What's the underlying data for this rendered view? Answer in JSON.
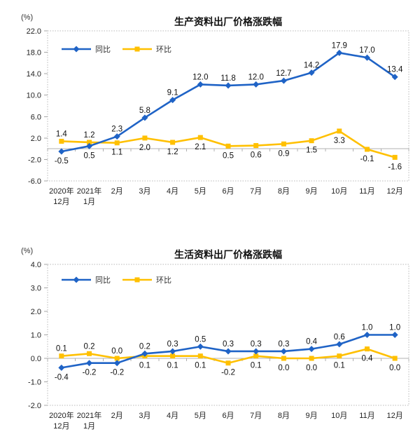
{
  "figure": {
    "background": "#ffffff"
  },
  "palette": {
    "yoy_blue": "#1F63C6",
    "mom_gold": "#FFC000",
    "grid_border": "#b8b8b8",
    "zero_line": "#b0b0b0",
    "tick": "#a6a6a6",
    "axis_text": "#222222",
    "label_text": "#111111"
  },
  "chart_data": [
    {
      "type": "line",
      "title": "生产资料出厂价格涨跌幅",
      "unit_label": "(%)",
      "categories": [
        "2020年|12月",
        "2021年|1月",
        "2月",
        "3月",
        "4月",
        "5月",
        "6月",
        "7月",
        "8月",
        "9月",
        "10月",
        "11月",
        "12月"
      ],
      "series": [
        {
          "key": "yoy",
          "name": "同比",
          "color": "#1F63C6",
          "marker": "diamond",
          "values": [
            -0.5,
            0.5,
            2.3,
            5.8,
            9.1,
            12.0,
            11.8,
            12.0,
            12.7,
            14.2,
            17.9,
            17.0,
            13.4
          ]
        },
        {
          "key": "mom",
          "name": "环比",
          "color": "#FFC000",
          "marker": "square",
          "values": [
            1.4,
            1.2,
            1.1,
            2.0,
            1.2,
            2.1,
            0.5,
            0.6,
            0.9,
            1.5,
            3.3,
            -0.1,
            -1.6
          ]
        }
      ],
      "ylim": [
        -6.0,
        22.0
      ],
      "ytick_step": 4.0,
      "yticks": [
        "22.0",
        "18.0",
        "14.0",
        "10.0",
        "6.0",
        "2.0",
        "-2.0",
        "-6.0"
      ],
      "legend_position": "top-left-inside",
      "grid": false,
      "data_labels": true
    },
    {
      "type": "line",
      "title": "生活资料出厂价格涨跌幅",
      "unit_label": "(%)",
      "categories": [
        "2020年|12月",
        "2021年|1月",
        "2月",
        "3月",
        "4月",
        "5月",
        "6月",
        "7月",
        "8月",
        "9月",
        "10月",
        "11月",
        "12月"
      ],
      "series": [
        {
          "key": "yoy",
          "name": "同比",
          "color": "#1F63C6",
          "marker": "diamond",
          "values": [
            -0.4,
            -0.2,
            -0.2,
            0.2,
            0.3,
            0.5,
            0.3,
            0.3,
            0.3,
            0.4,
            0.6,
            1.0,
            1.0
          ]
        },
        {
          "key": "mom",
          "name": "环比",
          "color": "#FFC000",
          "marker": "square",
          "values": [
            0.1,
            0.2,
            0.0,
            0.1,
            0.1,
            0.1,
            -0.2,
            0.1,
            0.0,
            0.0,
            0.1,
            0.4,
            0.0
          ]
        }
      ],
      "ylim": [
        -2.0,
        4.0
      ],
      "ytick_step": 1.0,
      "yticks": [
        "4.0",
        "3.0",
        "2.0",
        "1.0",
        "0.0",
        "-1.0",
        "-2.0"
      ],
      "legend_position": "top-left-inside",
      "grid": false,
      "data_labels": true
    }
  ]
}
